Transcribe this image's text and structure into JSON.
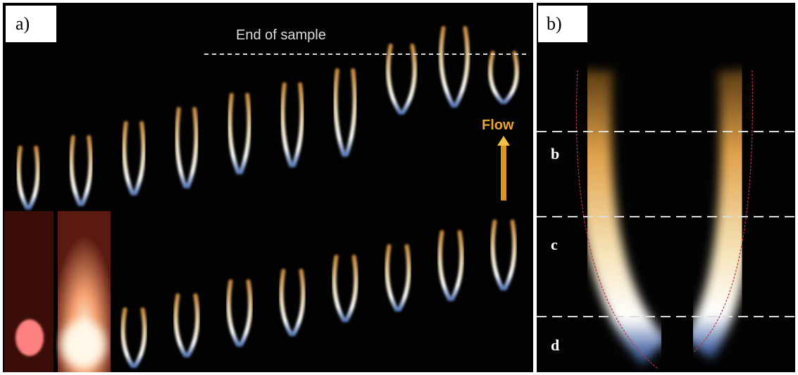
{
  "panels": [
    {
      "label": "a)",
      "end_marker": "End of sample",
      "flow": "Flow"
    },
    {
      "label": "b)",
      "zones": [
        "b",
        "c",
        "d"
      ]
    }
  ]
}
